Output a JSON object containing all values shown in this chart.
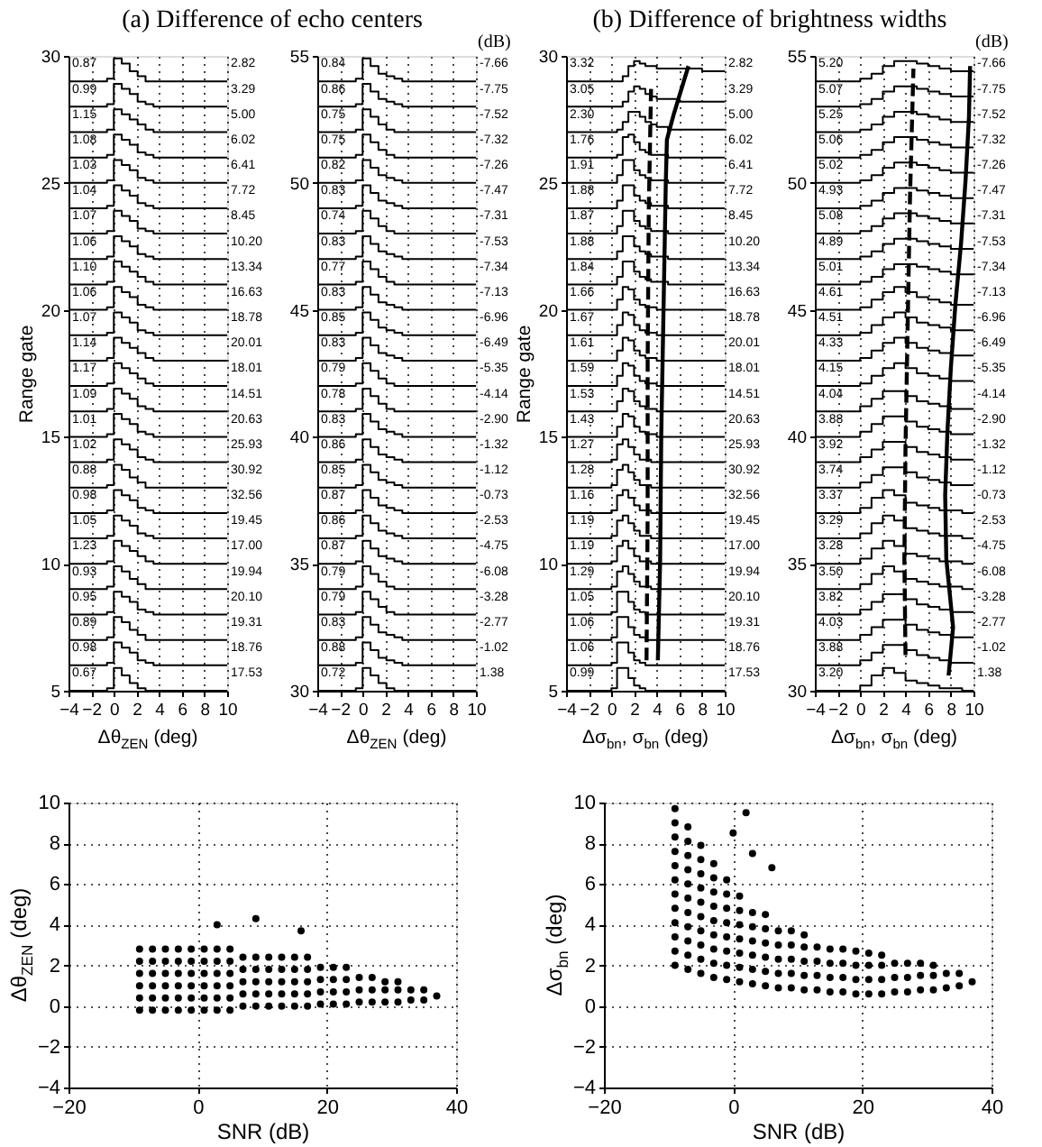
{
  "chart_data": [
    {
      "type": "step",
      "title": "(a) Difference of echo centers",
      "xlabel": "Δθ$_{ZEN}$ (deg)",
      "ylabel": "Range gate",
      "xlim": [
        -4,
        10
      ],
      "xticks": [
        -4,
        -2,
        0,
        2,
        4,
        6,
        8,
        10
      ],
      "ylim": [
        5,
        30
      ],
      "yticks": [
        5,
        10,
        15,
        20,
        25,
        30
      ],
      "grid": "x",
      "color": "#000000",
      "x": [
        -4,
        -0.6,
        0,
        0.7,
        1.4,
        2.1,
        2.8,
        3.5,
        10
      ],
      "series": [
        {
          "values": [
            29,
            29.1,
            29.9,
            29.7,
            29.4,
            29.2,
            29,
            29,
            29
          ]
        },
        {
          "values": [
            28,
            28.1,
            28.9,
            28.7,
            28.5,
            28.2,
            28.1,
            28,
            28
          ]
        },
        {
          "values": [
            27,
            27.1,
            27.9,
            27.7,
            27.5,
            27.3,
            27.1,
            27,
            27
          ]
        },
        {
          "values": [
            26,
            26.1,
            26.9,
            26.7,
            26.5,
            26.2,
            26.1,
            26,
            26
          ]
        },
        {
          "values": [
            25,
            25.1,
            25.9,
            25.7,
            25.5,
            25.2,
            25.1,
            25,
            25
          ]
        },
        {
          "values": [
            24,
            24.1,
            24.9,
            24.7,
            24.5,
            24.2,
            24.1,
            24,
            24
          ]
        },
        {
          "values": [
            23,
            23.1,
            23.9,
            23.7,
            23.5,
            23.2,
            23.1,
            23,
            23
          ]
        },
        {
          "values": [
            22,
            22.1,
            22.9,
            22.7,
            22.5,
            22.2,
            22.1,
            22,
            22
          ]
        },
        {
          "values": [
            21,
            21.1,
            21.9,
            21.7,
            21.5,
            21.3,
            21.1,
            21,
            21
          ]
        },
        {
          "values": [
            20,
            20.1,
            20.9,
            20.7,
            20.5,
            20.2,
            20.1,
            20,
            20
          ]
        },
        {
          "values": [
            19,
            19.1,
            19.9,
            19.7,
            19.5,
            19.2,
            19.1,
            19,
            19
          ]
        },
        {
          "values": [
            18,
            18.1,
            18.9,
            18.7,
            18.5,
            18.3,
            18.1,
            18,
            18
          ]
        },
        {
          "values": [
            17,
            17.1,
            17.9,
            17.7,
            17.5,
            17.3,
            17.1,
            17,
            17
          ]
        },
        {
          "values": [
            16,
            16.1,
            16.9,
            16.7,
            16.5,
            16.2,
            16.1,
            16,
            16
          ]
        },
        {
          "values": [
            15,
            15.1,
            15.9,
            15.7,
            15.5,
            15.2,
            15.1,
            15,
            15
          ]
        },
        {
          "values": [
            14,
            14.1,
            14.9,
            14.7,
            14.5,
            14.2,
            14.1,
            14,
            14
          ]
        },
        {
          "values": [
            13,
            13.1,
            13.9,
            13.7,
            13.4,
            13.2,
            13,
            13,
            13
          ]
        },
        {
          "values": [
            12,
            12.1,
            12.9,
            12.7,
            12.5,
            12.2,
            12.1,
            12,
            12
          ]
        },
        {
          "values": [
            11,
            11.1,
            11.9,
            11.7,
            11.5,
            11.2,
            11.1,
            11,
            11
          ]
        },
        {
          "values": [
            10,
            10.1,
            10.9,
            10.7,
            10.5,
            10.3,
            10.1,
            10,
            10
          ]
        },
        {
          "values": [
            9,
            9.1,
            9.9,
            9.7,
            9.4,
            9.2,
            9,
            9,
            9
          ]
        },
        {
          "values": [
            8,
            8.1,
            8.9,
            8.7,
            8.5,
            8.2,
            8.1,
            8,
            8
          ]
        },
        {
          "values": [
            7,
            7.1,
            7.9,
            7.7,
            7.4,
            7.2,
            7,
            7,
            7
          ]
        },
        {
          "values": [
            6,
            6.1,
            6.9,
            6.7,
            6.5,
            6.2,
            6.1,
            6,
            6
          ]
        },
        {
          "values": [
            5,
            5.1,
            5.9,
            5.6,
            5.3,
            5.1,
            5,
            5,
            5
          ]
        }
      ],
      "annotations": [
        "0.87",
        "2.82",
        "0.99",
        "3.29",
        "1.15",
        "5.00",
        "1.08",
        "6.02",
        "1.03",
        "6.41",
        "1.04",
        "7.72",
        "1.07",
        "8.45",
        "1.06",
        "10.20",
        "1.10",
        "13.34",
        "1.06",
        "16.63",
        "1.07",
        "18.78",
        "1.14",
        "20.01",
        "1.17",
        "18.01",
        "1.09",
        "14.51",
        "1.01",
        "20.63",
        "1.02",
        "25.93",
        "0.88",
        "30.92",
        "0.98",
        "32.56",
        "1.05",
        "19.45",
        "1.23",
        "17.00",
        "0.93",
        "19.94",
        "0.95",
        "20.10",
        "0.89",
        "19.31",
        "0.98",
        "18.76",
        "0.67",
        "17.53"
      ]
    },
    {
      "type": "step",
      "xlabel": "Δθ$_{ZEN}$ (deg)",
      "xlim": [
        -4,
        10
      ],
      "xticks": [
        -4,
        -2,
        0,
        2,
        4,
        6,
        8,
        10
      ],
      "ylim": [
        30,
        55
      ],
      "yticks": [
        30,
        35,
        40,
        45,
        50,
        55
      ],
      "grid": "x",
      "color": "#000000",
      "x": [
        -4,
        -0.6,
        0,
        0.7,
        1.4,
        2.1,
        2.8,
        3.5,
        10
      ],
      "series": [
        {
          "values": [
            54,
            54.1,
            54.9,
            54.6,
            54.3,
            54.2,
            54.1,
            54,
            54
          ]
        },
        {
          "values": [
            53,
            53.1,
            53.9,
            53.6,
            53.3,
            53.2,
            53.1,
            53,
            53
          ]
        },
        {
          "values": [
            52,
            52.1,
            52.9,
            52.6,
            52.3,
            52.1,
            52,
            52,
            52
          ]
        },
        {
          "values": [
            51,
            51.1,
            51.9,
            51.6,
            51.3,
            51.1,
            51,
            51,
            51
          ]
        },
        {
          "values": [
            50,
            50.1,
            50.9,
            50.6,
            50.3,
            50.2,
            50.1,
            50,
            50
          ]
        },
        {
          "values": [
            49,
            49.1,
            49.9,
            49.6,
            49.3,
            49.2,
            49.1,
            49,
            49
          ]
        },
        {
          "values": [
            48,
            48.1,
            48.9,
            48.6,
            48.3,
            48.1,
            48,
            48,
            48
          ]
        },
        {
          "values": [
            47,
            47.1,
            47.9,
            47.6,
            47.3,
            47.2,
            47.1,
            47,
            47
          ]
        },
        {
          "values": [
            46,
            46.1,
            46.9,
            46.6,
            46.3,
            46.1,
            46,
            46,
            46
          ]
        },
        {
          "values": [
            45,
            45.1,
            45.9,
            45.6,
            45.3,
            45.2,
            45.1,
            45,
            45
          ]
        },
        {
          "values": [
            44,
            44.1,
            44.9,
            44.6,
            44.3,
            44.2,
            44.1,
            44,
            44
          ]
        },
        {
          "values": [
            43,
            43.1,
            43.9,
            43.6,
            43.3,
            43.2,
            43.1,
            43,
            43
          ]
        },
        {
          "values": [
            42,
            42.1,
            42.9,
            42.6,
            42.3,
            42.1,
            42,
            42,
            42
          ]
        },
        {
          "values": [
            41,
            41.1,
            41.9,
            41.6,
            41.3,
            41.1,
            41,
            41,
            41
          ]
        },
        {
          "values": [
            40,
            40.1,
            40.9,
            40.6,
            40.3,
            40.2,
            40.1,
            40,
            40
          ]
        },
        {
          "values": [
            39,
            39.1,
            39.9,
            39.6,
            39.3,
            39.2,
            39.1,
            39,
            39
          ]
        },
        {
          "values": [
            38,
            38.1,
            38.9,
            38.6,
            38.3,
            38.2,
            38.1,
            38,
            38
          ]
        },
        {
          "values": [
            37,
            37.1,
            37.9,
            37.6,
            37.3,
            37.2,
            37.1,
            37,
            37
          ]
        },
        {
          "values": [
            36,
            36.1,
            36.9,
            36.6,
            36.3,
            36.2,
            36.1,
            36,
            36
          ]
        },
        {
          "values": [
            35,
            35.1,
            35.9,
            35.6,
            35.3,
            35.2,
            35.1,
            35,
            35
          ]
        },
        {
          "values": [
            34,
            34.1,
            34.9,
            34.6,
            34.3,
            34.1,
            34,
            34,
            34
          ]
        },
        {
          "values": [
            33,
            33.1,
            33.9,
            33.6,
            33.3,
            33.1,
            33,
            33,
            33
          ]
        },
        {
          "values": [
            32,
            32.1,
            32.9,
            32.6,
            32.3,
            32.2,
            32.1,
            32,
            32
          ]
        },
        {
          "values": [
            31,
            31.1,
            31.9,
            31.6,
            31.3,
            31.2,
            31.1,
            31,
            31
          ]
        },
        {
          "values": [
            30,
            30.1,
            30.9,
            30.6,
            30.3,
            30.1,
            30,
            30,
            30
          ]
        }
      ],
      "annotations": [
        "0.84",
        "-7.66",
        "0.86",
        "-7.75",
        "0.75",
        "-7.52",
        "0.75",
        "-7.32",
        "0.82",
        "-7.26",
        "0.83",
        "-7.47",
        "0.74",
        "-7.31",
        "0.83",
        "-7.53",
        "0.77",
        "-7.34",
        "0.83",
        "-7.13",
        "0.85",
        "-6.96",
        "0.83",
        "-6.49",
        "0.79",
        "-5.35",
        "0.78",
        "-4.14",
        "0.83",
        "-2.90",
        "0.86",
        "-1.32",
        "0.85",
        "-1.12",
        "0.87",
        "-0.73",
        "0.86",
        "-2.53",
        "0.87",
        "-4.75",
        "0.79",
        "-6.08",
        "0.79",
        "-3.28",
        "0.83",
        "-2.77",
        "0.88",
        "-1.02",
        "0.72",
        "1.38",
        "(dB)"
      ]
    },
    {
      "type": "step",
      "title": "(b) Difference of brightness widths",
      "xlabel": "Δσ$_{bn}$, σ$_{bn}$ (deg)",
      "ylabel": "Range gate",
      "xlim": [
        -4,
        10
      ],
      "xticks": [
        -4,
        -2,
        0,
        2,
        4,
        6,
        8,
        10
      ],
      "ylim": [
        5,
        30
      ],
      "yticks": [
        5,
        10,
        15,
        20,
        25,
        30
      ],
      "grid": "x",
      "color": "#000000",
      "x": [
        -4,
        0,
        0.5,
        1,
        1.5,
        2,
        2.5,
        3,
        3.5,
        4,
        5,
        6,
        7,
        8,
        10
      ],
      "series": [
        {
          "values": [
            29,
            29,
            29,
            29.2,
            29.6,
            29.8,
            29.7,
            29.6,
            29.6,
            29.5,
            29.5,
            29.5,
            29.5,
            29.4,
            29.4
          ]
        },
        {
          "values": [
            28,
            28,
            28,
            28.2,
            28.6,
            28.8,
            28.7,
            28.5,
            28.4,
            28.3,
            28.3,
            28.2,
            28.2,
            28.2,
            28.2
          ]
        },
        {
          "values": [
            27,
            27,
            27.1,
            27.4,
            27.8,
            27.8,
            27.6,
            27.4,
            27.3,
            27.2,
            27.1,
            27.1,
            27.1,
            27.1,
            27.1
          ]
        },
        {
          "values": [
            26,
            26,
            26.1,
            26.8,
            26.9,
            26.6,
            26.3,
            26.2,
            26.1,
            26.1,
            26,
            26,
            26,
            26,
            26
          ]
        },
        {
          "values": [
            25,
            25,
            25.3,
            25.9,
            25.9,
            25.5,
            25.3,
            25.2,
            25.1,
            25.1,
            25,
            25,
            25,
            25,
            25
          ]
        },
        {
          "values": [
            24,
            24,
            24.3,
            24.9,
            24.9,
            24.5,
            24.3,
            24.2,
            24.1,
            24.1,
            24,
            24,
            24,
            24,
            24
          ]
        },
        {
          "values": [
            23,
            23,
            23.3,
            23.9,
            23.9,
            23.5,
            23.3,
            23.2,
            23.1,
            23.1,
            23,
            23,
            23,
            23,
            23
          ]
        },
        {
          "values": [
            22,
            22,
            22.3,
            22.9,
            22.9,
            22.5,
            22.3,
            22.2,
            22.1,
            22.1,
            22,
            22,
            22,
            22,
            22
          ]
        },
        {
          "values": [
            21,
            21,
            21.3,
            21.9,
            21.9,
            21.5,
            21.3,
            21.2,
            21.1,
            21.1,
            21,
            21,
            21,
            21,
            21
          ]
        },
        {
          "values": [
            20,
            20,
            20.4,
            20.9,
            20.8,
            20.4,
            20.2,
            20.1,
            20.1,
            20,
            20,
            20,
            20,
            20,
            20
          ]
        },
        {
          "values": [
            19,
            19,
            19.4,
            19.9,
            19.8,
            19.4,
            19.2,
            19.1,
            19.1,
            19,
            19,
            19,
            19,
            19,
            19
          ]
        },
        {
          "values": [
            18,
            18,
            18.4,
            18.9,
            18.8,
            18.4,
            18.2,
            18.1,
            18.1,
            18,
            18,
            18,
            18,
            18,
            18
          ]
        },
        {
          "values": [
            17,
            17,
            17.4,
            17.9,
            17.8,
            17.4,
            17.2,
            17.1,
            17.1,
            17,
            17,
            17,
            17,
            17,
            17
          ]
        },
        {
          "values": [
            16,
            16,
            16.4,
            16.9,
            16.8,
            16.4,
            16.2,
            16.1,
            16.1,
            16,
            16,
            16,
            16,
            16,
            16
          ]
        },
        {
          "values": [
            15,
            15,
            15.4,
            15.9,
            15.8,
            15.4,
            15.2,
            15.1,
            15.1,
            15,
            15,
            15,
            15,
            15,
            15
          ]
        },
        {
          "values": [
            14,
            14.1,
            14.7,
            14.9,
            14.6,
            14.3,
            14.1,
            14.1,
            14,
            14,
            14,
            14,
            14,
            14,
            14
          ]
        },
        {
          "values": [
            13,
            13.1,
            13.7,
            13.9,
            13.6,
            13.3,
            13.1,
            13.1,
            13,
            13,
            13,
            13,
            13,
            13,
            13
          ]
        },
        {
          "values": [
            12,
            12.1,
            12.7,
            12.9,
            12.6,
            12.3,
            12.1,
            12.1,
            12,
            12,
            12,
            12,
            12,
            12,
            12
          ]
        },
        {
          "values": [
            11,
            11.1,
            11.7,
            11.9,
            11.6,
            11.3,
            11.1,
            11.1,
            11,
            11,
            11,
            11,
            11,
            11,
            11
          ]
        },
        {
          "values": [
            10,
            10.1,
            10.7,
            10.9,
            10.6,
            10.3,
            10.1,
            10.1,
            10,
            10,
            10,
            10,
            10,
            10,
            10
          ]
        },
        {
          "values": [
            9,
            9.1,
            9.7,
            9.9,
            9.6,
            9.3,
            9.1,
            9.1,
            9,
            9,
            9,
            9,
            9,
            9,
            9
          ]
        },
        {
          "values": [
            8,
            8.1,
            8.9,
            8.9,
            8.5,
            8.2,
            8.1,
            8,
            8,
            8,
            8,
            8,
            8,
            8,
            8
          ]
        },
        {
          "values": [
            7,
            7.1,
            7.9,
            7.9,
            7.5,
            7.2,
            7.1,
            7,
            7,
            7,
            7,
            7,
            7,
            7,
            7
          ]
        },
        {
          "values": [
            6,
            6.1,
            6.9,
            6.9,
            6.5,
            6.2,
            6.1,
            6,
            6,
            6,
            6,
            6,
            6,
            6,
            6
          ]
        },
        {
          "values": [
            5,
            5.1,
            5.9,
            5.9,
            5.5,
            5.2,
            5.1,
            5,
            5,
            5,
            5,
            5,
            5,
            5,
            5
          ]
        },
        {
          "type": "line",
          "line_style": "dashed",
          "x": [
            3.1,
            3.2,
            3.2,
            3.3,
            3.5
          ],
          "values": [
            6.2,
            12,
            18,
            24,
            28.7
          ]
        },
        {
          "type": "line",
          "x": [
            4.1,
            4.3,
            4.4,
            4.6,
            4.8,
            4.9,
            5.5,
            6.8
          ],
          "values": [
            6.2,
            10.1,
            15.1,
            20,
            25,
            26.7,
            27.7,
            29.6
          ]
        }
      ],
      "annotations": [
        "3.32",
        "2.82",
        "3.05",
        "3.29",
        "2.30",
        "5.00",
        "1.76",
        "6.02",
        "1.91",
        "6.41",
        "1.88",
        "7.72",
        "1.87",
        "8.45",
        "1.88",
        "10.20",
        "1.84",
        "13.34",
        "1.66",
        "16.63",
        "1.67",
        "18.78",
        "1.61",
        "20.01",
        "1.59",
        "18.01",
        "1.53",
        "14.51",
        "1.43",
        "20.63",
        "1.27",
        "25.93",
        "1.28",
        "30.92",
        "1.16",
        "32.56",
        "1.19",
        "19.45",
        "1.19",
        "17.00",
        "1.29",
        "19.94",
        "1.05",
        "20.10",
        "1.06",
        "19.31",
        "1.06",
        "18.76",
        "0.99",
        "17.53"
      ]
    },
    {
      "type": "step",
      "xlabel": "Δσ$_{bn}$, σ$_{bn}$ (deg)",
      "xlim": [
        -4,
        10
      ],
      "xticks": [
        -4,
        -2,
        0,
        2,
        4,
        6,
        8,
        10
      ],
      "ylim": [
        30,
        55
      ],
      "yticks": [
        30,
        35,
        40,
        45,
        50,
        55
      ],
      "grid": "x",
      "color": "#000000",
      "x": [
        -4,
        -1,
        0,
        1,
        2,
        3,
        4,
        5,
        6,
        7,
        8,
        9,
        10
      ],
      "series": [
        {
          "values": [
            54,
            54,
            54.1,
            54.3,
            54.6,
            54.8,
            54.8,
            54.7,
            54.6,
            54.5,
            54.4,
            54.4,
            54.4
          ]
        },
        {
          "values": [
            53,
            53,
            53.1,
            53.3,
            53.6,
            53.8,
            53.8,
            53.7,
            53.6,
            53.5,
            53.4,
            53.4,
            53.4
          ]
        },
        {
          "values": [
            52,
            52,
            52.1,
            52.3,
            52.6,
            52.8,
            52.8,
            52.7,
            52.6,
            52.5,
            52.4,
            52.4,
            52.4
          ]
        },
        {
          "values": [
            51,
            51,
            51.1,
            51.3,
            51.6,
            51.8,
            51.8,
            51.7,
            51.6,
            51.5,
            51.4,
            51.4,
            51.4
          ]
        },
        {
          "values": [
            50,
            50,
            50.1,
            50.3,
            50.6,
            50.8,
            50.8,
            50.7,
            50.6,
            50.5,
            50.4,
            50.4,
            50.4
          ]
        },
        {
          "values": [
            49,
            49,
            49.1,
            49.3,
            49.6,
            49.8,
            49.8,
            49.7,
            49.6,
            49.5,
            49.4,
            49.4,
            49.4
          ]
        },
        {
          "values": [
            48,
            48,
            48.1,
            48.3,
            48.6,
            48.8,
            48.8,
            48.7,
            48.6,
            48.5,
            48.4,
            48.4,
            48.4
          ]
        },
        {
          "values": [
            47,
            47,
            47.1,
            47.3,
            47.6,
            47.8,
            47.8,
            47.7,
            47.6,
            47.5,
            47.4,
            47.4,
            47.4
          ]
        },
        {
          "values": [
            46,
            46,
            46.1,
            46.3,
            46.6,
            46.8,
            46.8,
            46.7,
            46.6,
            46.5,
            46.4,
            46.4,
            46.4
          ]
        },
        {
          "values": [
            45,
            45,
            45.1,
            45.4,
            45.7,
            45.9,
            45.7,
            45.5,
            45.4,
            45.3,
            45.2,
            45.2,
            45.2
          ]
        },
        {
          "values": [
            44,
            44,
            44.1,
            44.4,
            44.7,
            44.9,
            44.7,
            44.5,
            44.4,
            44.3,
            44.2,
            44.2,
            44.2
          ]
        },
        {
          "values": [
            43,
            43,
            43.1,
            43.4,
            43.7,
            43.9,
            43.7,
            43.5,
            43.4,
            43.3,
            43.2,
            43.2,
            43.2
          ]
        },
        {
          "values": [
            42,
            42,
            42.1,
            42.4,
            42.7,
            42.9,
            42.7,
            42.5,
            42.4,
            42.3,
            42.2,
            42.2,
            42.2
          ]
        },
        {
          "values": [
            41,
            41,
            41.2,
            41.5,
            41.8,
            41.8,
            41.6,
            41.4,
            41.3,
            41.2,
            41.1,
            41.1,
            41.1
          ]
        },
        {
          "values": [
            40,
            40,
            40.2,
            40.5,
            40.8,
            40.8,
            40.6,
            40.4,
            40.3,
            40.2,
            40.1,
            40.1,
            40.1
          ]
        },
        {
          "values": [
            39,
            39,
            39.2,
            39.5,
            39.8,
            39.8,
            39.6,
            39.4,
            39.3,
            39.2,
            39.1,
            39.1,
            39.1
          ]
        },
        {
          "values": [
            38,
            38,
            38.2,
            38.5,
            38.8,
            38.8,
            38.6,
            38.4,
            38.3,
            38.2,
            38.1,
            38.1,
            38.1
          ]
        },
        {
          "values": [
            37,
            37,
            37.2,
            37.6,
            37.9,
            37.7,
            37.4,
            37.3,
            37.2,
            37.1,
            37.1,
            37,
            37
          ]
        },
        {
          "values": [
            36,
            36,
            36.2,
            36.6,
            36.9,
            36.7,
            36.4,
            36.3,
            36.2,
            36.1,
            36.1,
            36,
            36
          ]
        },
        {
          "values": [
            35,
            35,
            35.2,
            35.6,
            35.9,
            35.7,
            35.4,
            35.3,
            35.2,
            35.1,
            35.1,
            35,
            35
          ]
        },
        {
          "values": [
            34,
            34,
            34.2,
            34.6,
            34.9,
            34.7,
            34.4,
            34.3,
            34.2,
            34.1,
            34.1,
            34,
            34
          ]
        },
        {
          "values": [
            33,
            33,
            33.2,
            33.5,
            33.8,
            33.8,
            33.6,
            33.4,
            33.3,
            33.2,
            33.1,
            33.1,
            33.1
          ]
        },
        {
          "values": [
            32,
            32,
            32.2,
            32.5,
            32.8,
            32.8,
            32.6,
            32.4,
            32.3,
            32.2,
            32.1,
            32.1,
            32.1
          ]
        },
        {
          "values": [
            31,
            31,
            31.2,
            31.5,
            31.8,
            31.8,
            31.6,
            31.4,
            31.3,
            31.2,
            31.1,
            31.1,
            31.1
          ]
        },
        {
          "values": [
            30,
            30,
            30.2,
            30.6,
            30.9,
            30.7,
            30.4,
            30.3,
            30.2,
            30.1,
            30.1,
            30,
            30
          ]
        },
        {
          "type": "line",
          "line_style": "dashed",
          "x": [
            4.0,
            3.9,
            4.0,
            4.2,
            4.4,
            4.7
          ],
          "values": [
            31.4,
            35.2,
            39.6,
            44.6,
            49.5,
            54.5
          ]
        },
        {
          "type": "line",
          "x": [
            7.8,
            8.2,
            7.6,
            7.5,
            7.7,
            8.0,
            8.4,
            8.9,
            9.3,
            9.6,
            9.7
          ],
          "values": [
            30.6,
            32.5,
            35.2,
            37.7,
            40.2,
            42.7,
            45.2,
            47.6,
            50.1,
            52.6,
            54.6
          ]
        }
      ],
      "annotations": [
        "5.20",
        "-7.66",
        "5.07",
        "-7.75",
        "5.25",
        "-7.52",
        "5.06",
        "-7.32",
        "5.02",
        "-7.26",
        "4.93",
        "-7.47",
        "5.08",
        "-7.31",
        "4.89",
        "-7.53",
        "5.01",
        "-7.34",
        "4.61",
        "-7.13",
        "4.51",
        "-6.96",
        "4.33",
        "-6.49",
        "4.15",
        "-5.35",
        "4.04",
        "-4.14",
        "3.88",
        "-2.90",
        "3.92",
        "-1.32",
        "3.74",
        "-1.12",
        "3.37",
        "-0.73",
        "3.29",
        "-2.53",
        "3.28",
        "-4.75",
        "3.50",
        "-6.08",
        "3.82",
        "-3.28",
        "4.03",
        "-2.77",
        "3.88",
        "-1.02",
        "3.20",
        "1.38",
        "(dB)"
      ]
    },
    {
      "type": "scatter",
      "xlabel": "SNR (dB)",
      "ylabel": "Δθ$_{ZEN}$ (deg)",
      "xlim": [
        -20,
        40
      ],
      "xticks": [
        -20,
        0,
        20,
        40
      ],
      "ylim": [
        -4,
        10
      ],
      "yticks": [
        -4,
        -2,
        0,
        2,
        4,
        6,
        8,
        10
      ],
      "grid": true,
      "marker": "circle",
      "color": "#000000",
      "x": [
        -9,
        -9,
        -9,
        -9,
        -9,
        -9,
        -7,
        -7,
        -7,
        -7,
        -7,
        -7,
        -5,
        -5,
        -5,
        -5,
        -5,
        -5,
        -3,
        -3,
        -3,
        -3,
        -3,
        -3,
        -1,
        -1,
        -1,
        -1,
        -1,
        -1,
        1,
        1,
        1,
        1,
        1,
        1,
        3,
        3,
        3,
        3,
        3,
        3,
        5,
        5,
        5,
        5,
        5,
        5,
        7,
        7,
        7,
        7,
        7,
        9,
        9,
        9,
        9,
        9,
        11,
        11,
        11,
        11,
        11,
        13,
        13,
        13,
        13,
        13,
        15,
        15,
        15,
        15,
        15,
        17,
        17,
        17,
        17,
        17,
        19,
        19,
        19,
        19,
        21,
        21,
        21,
        21,
        23,
        23,
        23,
        23,
        25,
        25,
        25,
        27,
        27,
        27,
        29,
        29,
        29,
        31,
        31,
        31,
        33,
        33,
        35,
        35,
        37,
        3,
        9,
        16
      ],
      "values": [
        -0.2,
        0.4,
        1,
        1.6,
        2.2,
        2.8,
        -0.2,
        0.4,
        1,
        1.6,
        2.2,
        2.8,
        -0.2,
        0.4,
        1,
        1.6,
        2.2,
        2.8,
        -0.2,
        0.4,
        1,
        1.6,
        2.2,
        2.8,
        -0.2,
        0.4,
        1,
        1.6,
        2.2,
        2.8,
        -0.2,
        0.4,
        1,
        1.6,
        2.2,
        2.8,
        -0.2,
        0.4,
        1,
        1.6,
        2.2,
        2.8,
        -0.2,
        0.4,
        1,
        1.6,
        2.2,
        2.8,
        0,
        0.6,
        1.2,
        1.8,
        2.4,
        0,
        0.6,
        1.2,
        1.8,
        2.4,
        0,
        0.6,
        1.2,
        1.8,
        2.4,
        0,
        0.6,
        1.2,
        1.8,
        2.4,
        0,
        0.6,
        1.2,
        1.8,
        2.4,
        0,
        0.6,
        1.2,
        1.8,
        2.4,
        0.1,
        0.7,
        1.3,
        1.9,
        0.1,
        0.7,
        1.3,
        1.9,
        0.1,
        0.7,
        1.3,
        1.9,
        0.2,
        0.8,
        1.4,
        0.2,
        0.8,
        1.4,
        0.2,
        0.8,
        1.2,
        0.2,
        0.8,
        1.2,
        0.3,
        0.8,
        0.3,
        0.8,
        0.5,
        4,
        4.3,
        3.7
      ]
    },
    {
      "type": "scatter",
      "xlabel": "SNR (dB)",
      "ylabel": "Δσ$_{bn}$ (deg)",
      "xlim": [
        -20,
        40
      ],
      "xticks": [
        -20,
        0,
        20,
        40
      ],
      "ylim": [
        -4,
        10
      ],
      "yticks": [
        -4,
        -2,
        0,
        2,
        4,
        6,
        8,
        10
      ],
      "grid": true,
      "marker": "circle",
      "color": "#000000",
      "x": [
        -9,
        -9,
        -9,
        -9,
        -9,
        -9,
        -9,
        -9,
        -9,
        -9,
        -9,
        -9,
        -7,
        -7,
        -7,
        -7,
        -7,
        -7,
        -7,
        -7,
        -7,
        -7,
        -7,
        -5,
        -5,
        -5,
        -5,
        -5,
        -5,
        -5,
        -5,
        -5,
        -5,
        -3,
        -3,
        -3,
        -3,
        -3,
        -3,
        -3,
        -3,
        -3,
        -1,
        -1,
        -1,
        -1,
        -1,
        -1,
        -1,
        -1,
        1,
        1,
        1,
        1,
        1,
        1,
        1,
        3,
        3,
        3,
        3,
        3,
        3,
        5,
        5,
        5,
        5,
        5,
        5,
        7,
        7,
        7,
        7,
        7,
        9,
        9,
        9,
        9,
        9,
        11,
        11,
        11,
        11,
        11,
        13,
        13,
        13,
        13,
        15,
        15,
        15,
        15,
        17,
        17,
        17,
        17,
        19,
        19,
        19,
        19,
        21,
        21,
        21,
        21,
        23,
        23,
        23,
        23,
        25,
        25,
        25,
        27,
        27,
        27,
        29,
        29,
        29,
        31,
        31,
        31,
        33,
        33,
        35,
        35,
        37,
        0,
        3,
        6,
        2
      ],
      "values": [
        2,
        2.7,
        3.4,
        4.1,
        4.8,
        5.5,
        6.2,
        6.9,
        7.6,
        8.3,
        9,
        9.7,
        1.8,
        2.5,
        3.2,
        3.9,
        4.6,
        5.3,
        6,
        6.7,
        7.4,
        8.1,
        8.8,
        1.6,
        2.3,
        3,
        3.7,
        4.4,
        5.1,
        5.8,
        6.5,
        7.2,
        7.9,
        1.4,
        2.1,
        2.8,
        3.5,
        4.2,
        4.9,
        5.6,
        6.3,
        7,
        1.3,
        2,
        2.7,
        3.4,
        4.1,
        4.8,
        5.5,
        6.2,
        1.2,
        1.9,
        2.6,
        3.3,
        4,
        4.7,
        5.4,
        1.1,
        1.8,
        2.5,
        3.2,
        3.9,
        4.6,
        1,
        1.7,
        2.4,
        3.1,
        3.8,
        4.5,
        0.9,
        1.6,
        2.3,
        3,
        3.7,
        0.9,
        1.6,
        2.3,
        3,
        3.7,
        0.8,
        1.5,
        2.2,
        2.9,
        3.5,
        0.8,
        1.5,
        2.2,
        2.9,
        0.7,
        1.4,
        2.1,
        2.8,
        0.7,
        1.4,
        2.1,
        2.8,
        0.6,
        1.3,
        2,
        2.7,
        0.6,
        1.3,
        2,
        2.6,
        0.6,
        1.3,
        2,
        2.5,
        0.7,
        1.4,
        2.1,
        0.7,
        1.4,
        2.1,
        0.8,
        1.5,
        2.1,
        0.8,
        1.5,
        2,
        0.9,
        1.6,
        1,
        1.6,
        1.2,
        8.5,
        7.5,
        6.8,
        9.5
      ]
    }
  ]
}
